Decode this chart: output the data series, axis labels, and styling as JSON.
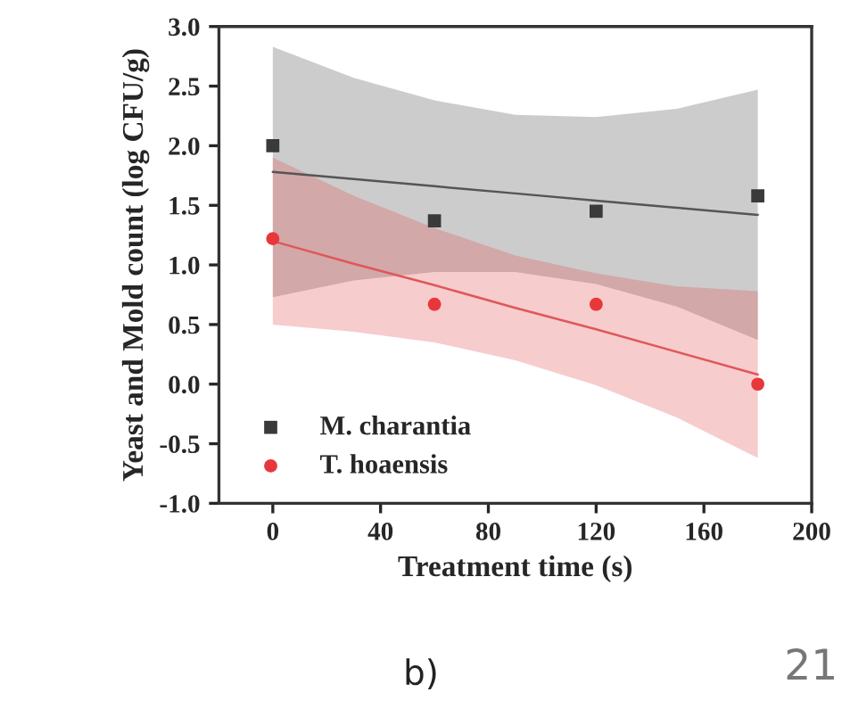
{
  "chart_data": {
    "type": "scatter",
    "xlabel": "Treatment time (s)",
    "ylabel": "Yeast and Mold count (log CFU/g)",
    "xlim": [
      -20,
      200
    ],
    "xticks": [
      0,
      40,
      80,
      120,
      160,
      200
    ],
    "ylim": [
      -1.0,
      3.0
    ],
    "yticks": [
      {
        "value": -1.0,
        "label": "-1.0"
      },
      {
        "value": -0.5,
        "label": "-0.5"
      },
      {
        "value": 0.0,
        "label": "0.0"
      },
      {
        "value": 0.5,
        "label": "0.5"
      },
      {
        "value": 1.0,
        "label": "1.0"
      },
      {
        "value": 1.5,
        "label": "1.5"
      },
      {
        "value": 2.0,
        "label": "2.0"
      },
      {
        "value": 2.5,
        "label": "2.5"
      },
      {
        "value": 3.0,
        "label": "3.0"
      }
    ],
    "grid": false,
    "legend": "bottom left",
    "series": [
      {
        "type": "line",
        "color": "#555555",
        "x": [
          0,
          30,
          60,
          90,
          120,
          150,
          180
        ],
        "values": [
          1.78,
          1.72,
          1.66,
          1.6,
          1.54,
          1.48,
          1.42
        ],
        "lower": [
          0.73,
          0.87,
          0.94,
          0.94,
          0.84,
          0.65,
          0.37
        ],
        "upper": [
          2.83,
          2.57,
          2.38,
          2.26,
          2.24,
          2.31,
          2.47
        ]
      },
      {
        "type": "line",
        "color": "#e0575a",
        "x": [
          0,
          30,
          60,
          90,
          120,
          150,
          180
        ],
        "values": [
          1.2,
          1.01,
          0.83,
          0.64,
          0.46,
          0.27,
          0.08
        ],
        "lower": [
          0.5,
          0.44,
          0.35,
          0.2,
          -0.01,
          -0.28,
          -0.62
        ],
        "upper": [
          1.9,
          1.58,
          1.31,
          1.08,
          0.93,
          0.82,
          0.78
        ]
      },
      {
        "name": "M. charantia",
        "color": "#3a3a3a",
        "marker": "square",
        "x": [
          0,
          60,
          120,
          180
        ],
        "values": [
          2.0,
          1.37,
          1.45,
          1.58
        ]
      },
      {
        "name": "T. hoaensis",
        "color": "#e8373b",
        "marker": "circle",
        "x": [
          0,
          60,
          120,
          180
        ],
        "values": [
          1.22,
          0.67,
          0.67,
          0.0
        ]
      }
    ],
    "annotations": [
      "b)",
      "21"
    ]
  }
}
